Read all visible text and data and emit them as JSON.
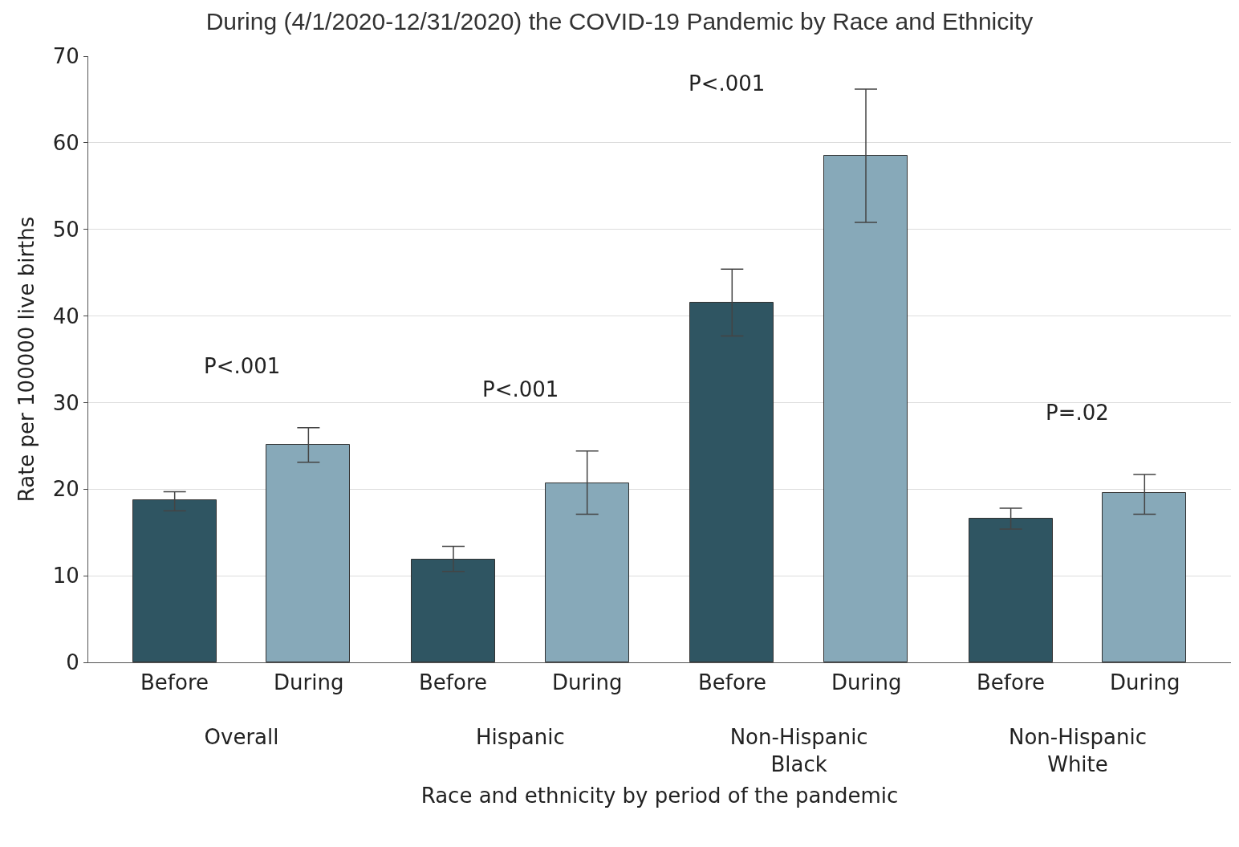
{
  "chart_data": {
    "type": "bar",
    "title": "During (4/1/2020-12/31/2020) the COVID-19 Pandemic by Race and Ethnicity",
    "xlabel": "Race and ethnicity by period of the pandemic",
    "ylabel": "Rate per 100000 live births",
    "categories": [
      "Overall",
      "Hispanic",
      "Non-Hispanic Black",
      "Non-Hispanic White"
    ],
    "series": [
      {
        "name": "Before",
        "color": "#2f5562",
        "values": [
          18.7,
          11.9,
          41.5,
          16.6
        ],
        "errors": [
          [
            17.5,
            19.7
          ],
          [
            10.5,
            13.4
          ],
          [
            37.7,
            45.4
          ],
          [
            15.4,
            17.8
          ]
        ]
      },
      {
        "name": "During",
        "color": "#87a9b9",
        "values": [
          25.1,
          20.7,
          58.5,
          19.6
        ],
        "errors": [
          [
            23.1,
            27.1
          ],
          [
            17.1,
            24.4
          ],
          [
            50.8,
            66.2
          ],
          [
            17.1,
            21.7
          ]
        ]
      }
    ],
    "annotations": [
      "P<.001",
      "P<.001",
      "P<.001",
      "P=.02"
    ],
    "ylim": [
      0,
      70
    ],
    "yticks": [
      0,
      10,
      20,
      30,
      40,
      50,
      60,
      70
    ],
    "grid": "y",
    "legend": false
  }
}
